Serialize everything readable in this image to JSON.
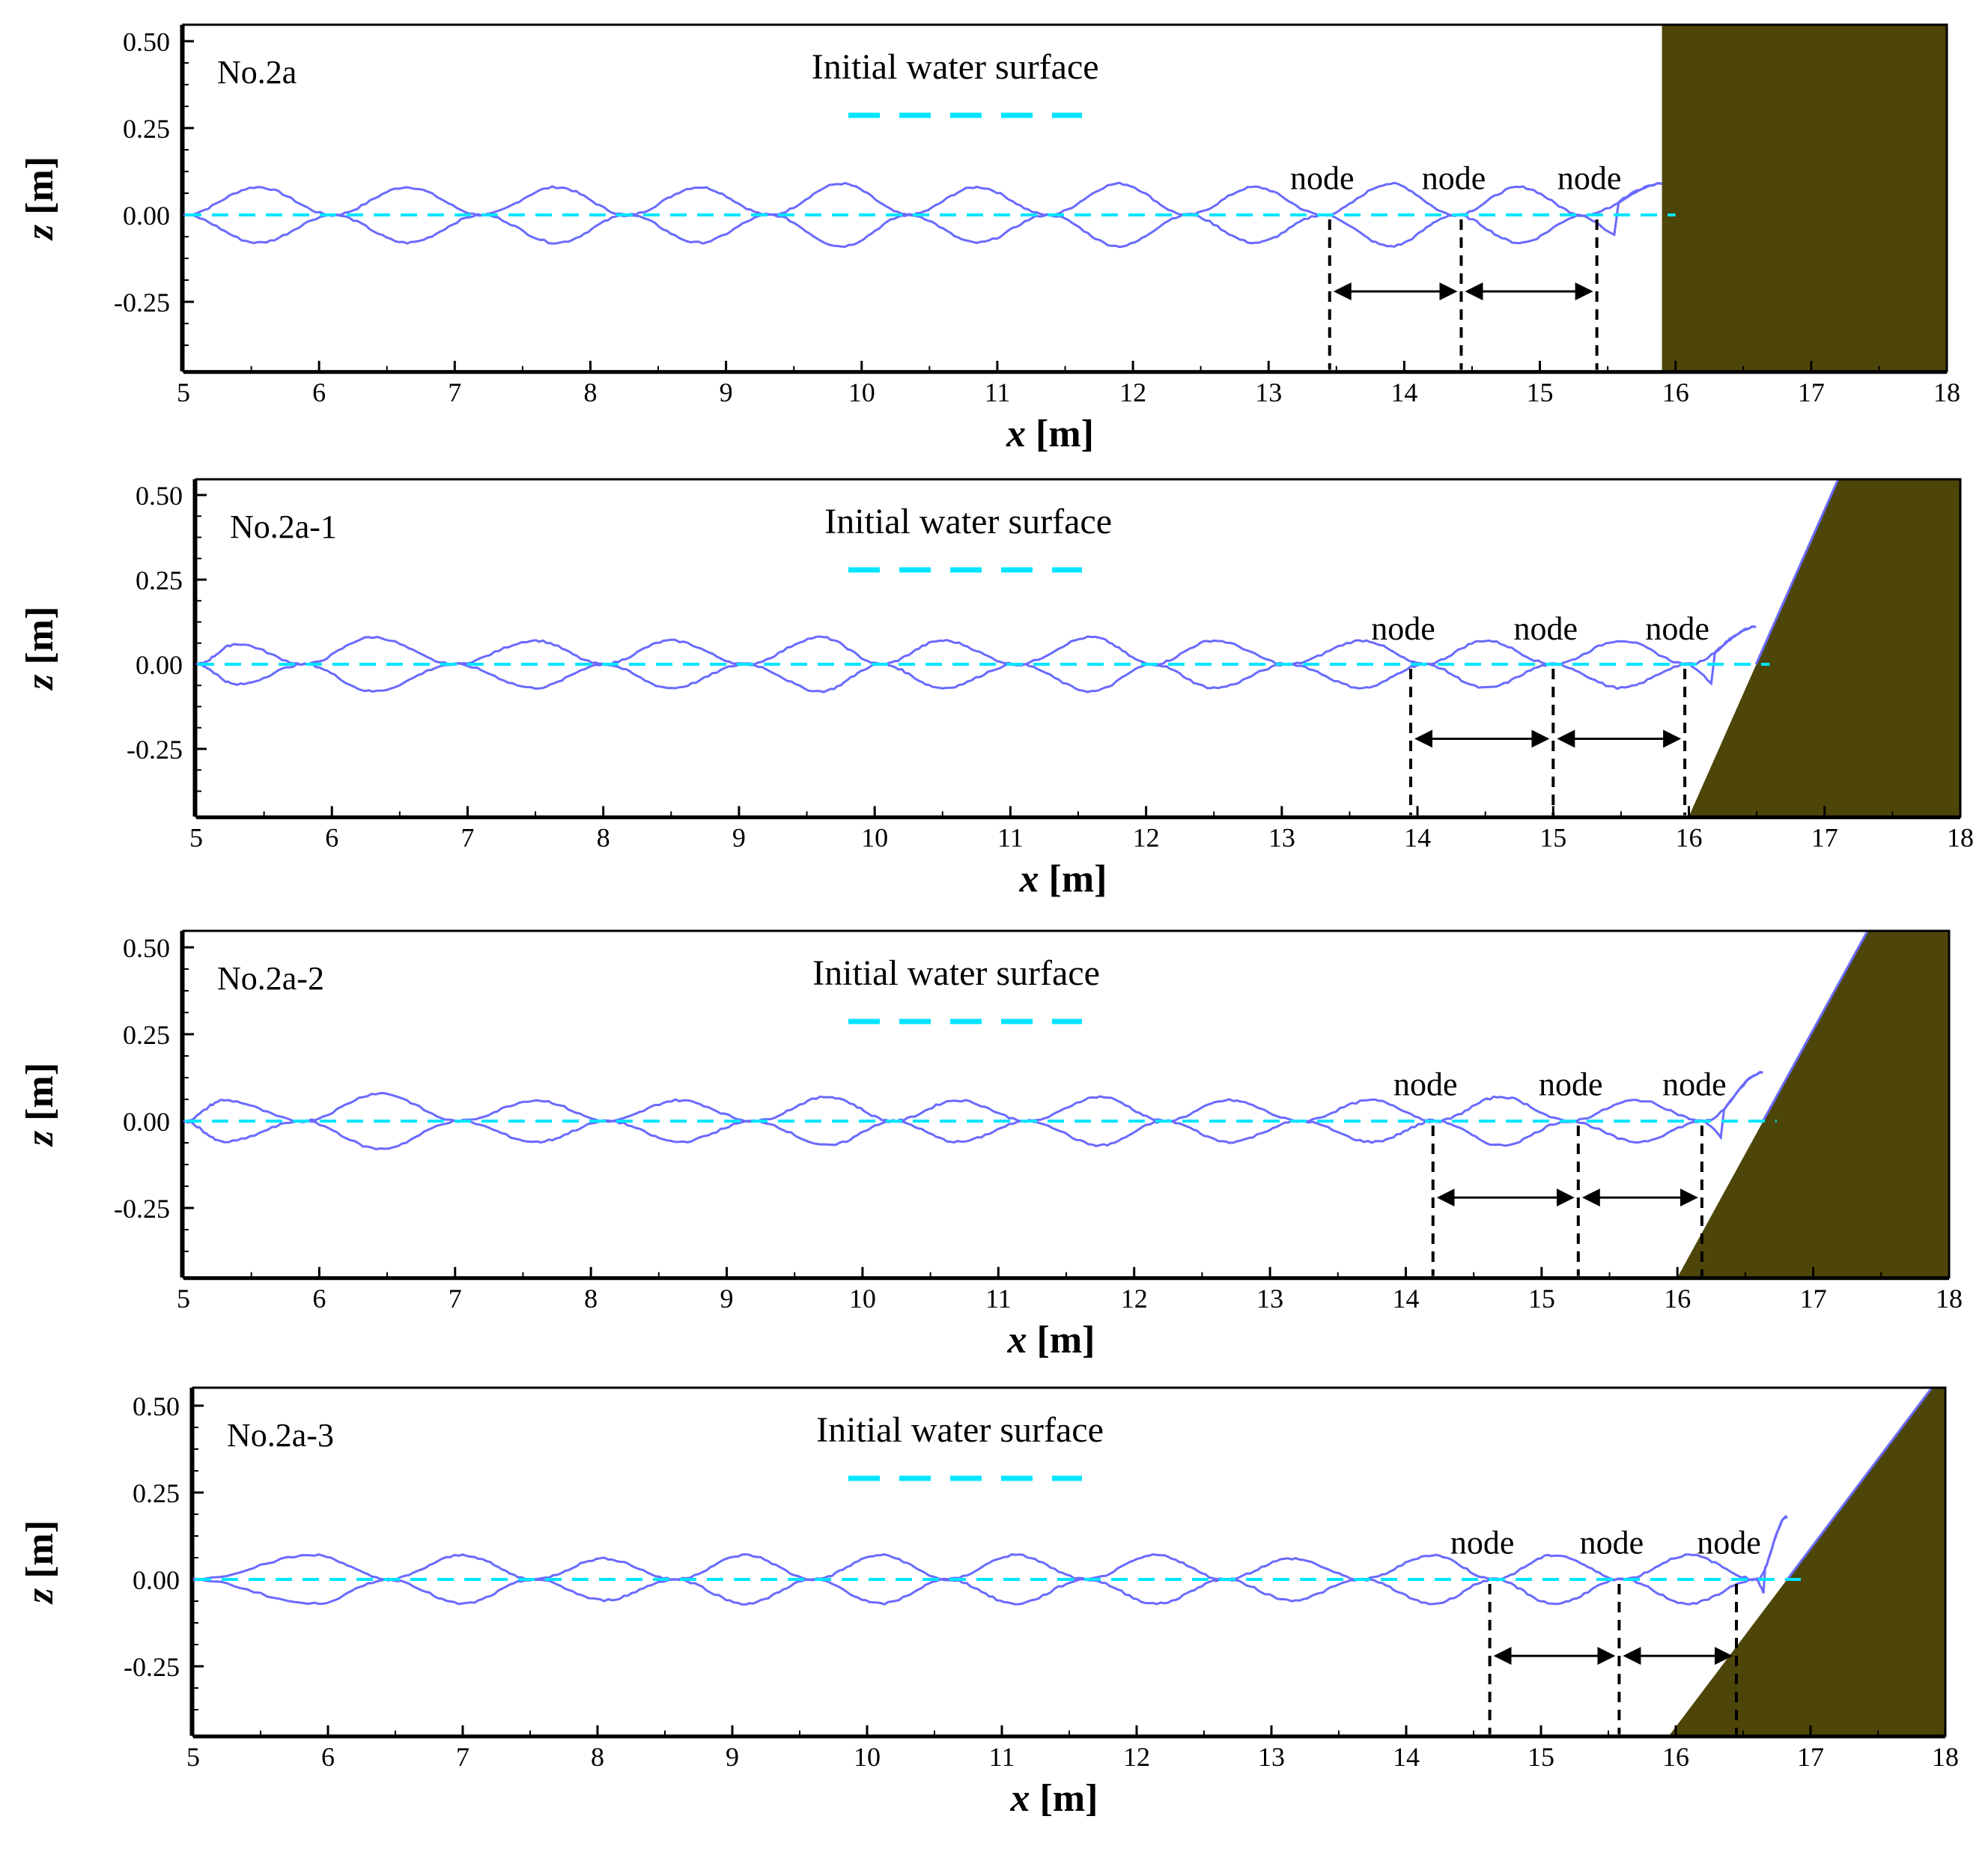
{
  "colors": {
    "wave_envelope": "#6a6aff",
    "initial_water_surface": "#00e5ff",
    "structure": "#4d4608",
    "node_marker": "#000000"
  },
  "chart_data": [
    {
      "type": "line",
      "panel_label": "No.2a",
      "legend": "Initial water surface",
      "xlabel_var": "x",
      "xlabel_unit": " [m]",
      "ylabel_var": "z",
      "ylabel_unit": " [m]",
      "xlim": [
        5,
        18
      ],
      "ylim": [
        -0.45,
        0.55
      ],
      "x_ticks": [
        "5",
        "6",
        "7",
        "8",
        "9",
        "10",
        "11",
        "12",
        "13",
        "14",
        "15",
        "16",
        "17",
        "18"
      ],
      "y_ticks": [
        "0.50",
        "0.25",
        "0.00",
        "-0.25"
      ],
      "structure": {
        "shape": "vertical wall",
        "toe_x": 15.9,
        "top_x": 15.9
      },
      "envelope_start_x": 5.0,
      "antinode_x": [
        5.55,
        6.65,
        7.75,
        8.8,
        9.85,
        10.85,
        11.9,
        12.9,
        13.9,
        14.85
      ],
      "antinode_height": [
        0.08,
        0.08,
        0.08,
        0.08,
        0.09,
        0.08,
        0.09,
        0.08,
        0.09,
        0.08
      ],
      "wall_runup": 0.09,
      "nodes": [
        {
          "label": "node",
          "x": 13.45
        },
        {
          "label": "node",
          "x": 14.42
        },
        {
          "label": "node",
          "x": 15.42
        }
      ]
    },
    {
      "type": "line",
      "panel_label": "No.2a-1",
      "legend": "Initial water surface",
      "xlabel_var": "x",
      "xlabel_unit": " [m]",
      "ylabel_var": "z",
      "ylabel_unit": " [m]",
      "xlim": [
        5,
        18
      ],
      "ylim": [
        -0.45,
        0.55
      ],
      "x_ticks": [
        "5",
        "6",
        "7",
        "8",
        "9",
        "10",
        "11",
        "12",
        "13",
        "14",
        "15",
        "16",
        "17",
        "18"
      ],
      "y_ticks": [
        "0.50",
        "0.25",
        "0.00",
        "-0.25"
      ],
      "structure": {
        "shape": "sloped wall",
        "toe_x": 16.0,
        "top_x": 17.1
      },
      "envelope_start_x": 5.0,
      "antinode_x": [
        5.3,
        6.3,
        7.5,
        8.5,
        9.6,
        10.5,
        11.6,
        12.5,
        13.6,
        14.5,
        15.5
      ],
      "antinode_height": [
        0.06,
        0.08,
        0.07,
        0.07,
        0.08,
        0.07,
        0.08,
        0.07,
        0.07,
        0.07,
        0.07
      ],
      "wall_runup": 0.11,
      "nodes": [
        {
          "label": "node",
          "x": 13.95
        },
        {
          "label": "node",
          "x": 15.0
        },
        {
          "label": "node",
          "x": 15.97
        }
      ]
    },
    {
      "type": "line",
      "panel_label": "No.2a-2",
      "legend": "Initial water surface",
      "xlabel_var": "x",
      "xlabel_unit": " [m]",
      "ylabel_var": "z",
      "ylabel_unit": " [m]",
      "xlim": [
        5,
        18
      ],
      "ylim": [
        -0.45,
        0.55
      ],
      "x_ticks": [
        "5",
        "6",
        "7",
        "8",
        "9",
        "10",
        "11",
        "12",
        "13",
        "14",
        "15",
        "16",
        "17",
        "18"
      ],
      "y_ticks": [
        "0.50",
        "0.25",
        "0.00",
        "-0.25"
      ],
      "structure": {
        "shape": "sloped wall",
        "toe_x": 16.0,
        "top_x": 17.4
      },
      "envelope_start_x": 5.0,
      "antinode_x": [
        5.3,
        6.45,
        7.6,
        8.65,
        9.75,
        10.7,
        11.75,
        12.7,
        13.75,
        14.7,
        15.7
      ],
      "antinode_height": [
        0.06,
        0.08,
        0.06,
        0.06,
        0.07,
        0.06,
        0.07,
        0.06,
        0.06,
        0.07,
        0.06
      ],
      "wall_runup": 0.14,
      "nodes": [
        {
          "label": "node",
          "x": 14.2
        },
        {
          "label": "node",
          "x": 15.27
        },
        {
          "label": "node",
          "x": 16.18
        }
      ]
    },
    {
      "type": "line",
      "panel_label": "No.2a-3",
      "legend": "Initial water surface",
      "xlabel_var": "x",
      "xlabel_unit": " [m]",
      "ylabel_var": "z",
      "ylabel_unit": " [m]",
      "xlim": [
        5,
        18
      ],
      "ylim": [
        -0.45,
        0.55
      ],
      "x_ticks": [
        "5",
        "6",
        "7",
        "8",
        "9",
        "10",
        "11",
        "12",
        "13",
        "14",
        "15",
        "16",
        "17",
        "18"
      ],
      "y_ticks": [
        "0.50",
        "0.25",
        "0.00",
        "-0.25"
      ],
      "structure": {
        "shape": "sloped wall",
        "toe_x": 15.95,
        "top_x": 17.9
      },
      "envelope_start_x": 5.0,
      "antinode_x": [
        5.9,
        7.0,
        8.05,
        9.1,
        10.1,
        11.1,
        12.15,
        13.15,
        14.2,
        15.1,
        16.1
      ],
      "antinode_height": [
        0.07,
        0.07,
        0.06,
        0.07,
        0.07,
        0.07,
        0.07,
        0.06,
        0.07,
        0.07,
        0.07
      ],
      "wall_runup": 0.18,
      "nodes": [
        {
          "label": "node",
          "x": 14.62
        },
        {
          "label": "node",
          "x": 15.58
        },
        {
          "label": "node",
          "x": 16.45
        }
      ]
    }
  ]
}
